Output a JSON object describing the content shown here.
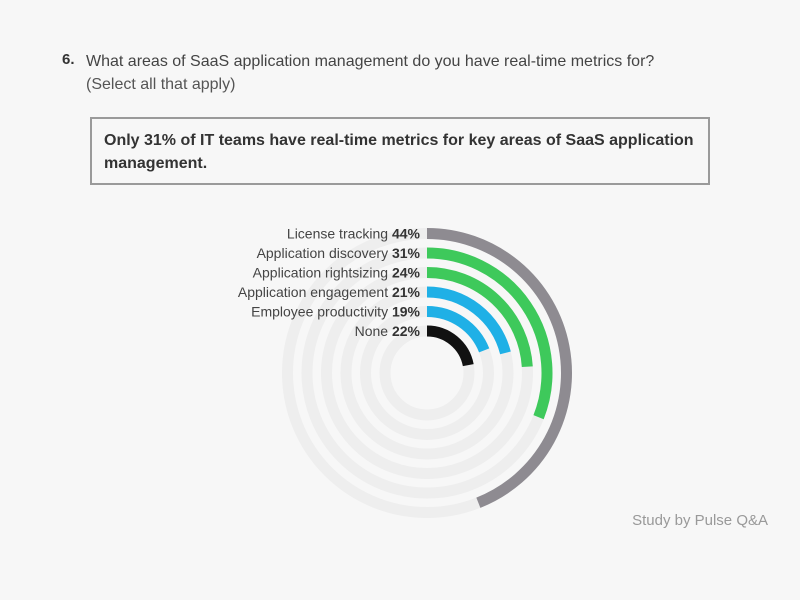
{
  "question": {
    "number": "6.",
    "line1": "What areas of SaaS application management do you have real-time metrics for?",
    "line2": "(Select all that apply)"
  },
  "callout": {
    "text": "Only 31% of IT teams have real-time metrics for key areas of SaaS application management."
  },
  "source": "Study by Pulse Q&A",
  "chart_data": {
    "type": "radial-bar",
    "categories": [
      "License tracking",
      "Application discovery",
      "Application rightsizing",
      "Application engagement",
      "Employee productivity",
      "None"
    ],
    "values": [
      44,
      31,
      24,
      21,
      19,
      22
    ],
    "value_labels": [
      "44%",
      "31%",
      "24%",
      "21%",
      "19%",
      "22%"
    ],
    "colors": [
      "#8e8b91",
      "#3ec95b",
      "#3ec95b",
      "#1fb0e6",
      "#1fb0e6",
      "#111111"
    ],
    "track_color": "#eeeeee",
    "max": 100
  }
}
